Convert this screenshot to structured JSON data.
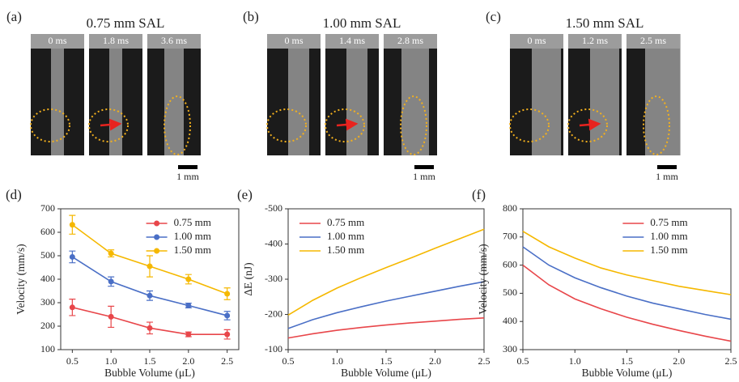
{
  "panels": [
    {
      "label": "(a)",
      "title": "0.75 mm SAL",
      "frames": [
        "0 ms",
        "1.8 ms",
        "3.6 ms"
      ],
      "scale": "1 mm"
    },
    {
      "label": "(b)",
      "title": "1.00 mm SAL",
      "frames": [
        "0 ms",
        "1.4 ms",
        "2.8 ms"
      ],
      "scale": "1 mm"
    },
    {
      "label": "(c)",
      "title": "1.50 mm SAL",
      "frames": [
        "0 ms",
        "1.2 ms",
        "2.5 ms"
      ],
      "scale": "1 mm"
    }
  ],
  "chart_data": [
    {
      "type": "line",
      "label": "(d)",
      "markers": true,
      "legend": "upper right",
      "xlabel": "Bubble Volume (μL)",
      "ylabel": "Velocity (mm/s)",
      "x": [
        0.5,
        1,
        1.5,
        2,
        2.5
      ],
      "xlim": [
        0.35,
        2.65
      ],
      "xticks": [
        0.5,
        {
          "value": 1,
          "label": "1.0"
        },
        1.5,
        {
          "value": 2,
          "label": "2.0"
        },
        2.5
      ],
      "ylim": [
        100,
        700
      ],
      "yticks": [
        100,
        200,
        300,
        400,
        500,
        600,
        700
      ],
      "series": [
        {
          "name": "0.75 mm",
          "color": "#e8464a",
          "values": [
            280,
            240,
            192,
            165,
            165
          ],
          "errors": [
            35,
            45,
            25,
            10,
            20
          ]
        },
        {
          "name": "1.00 mm",
          "color": "#4a6fc6",
          "values": [
            495,
            390,
            330,
            288,
            245
          ],
          "errors": [
            25,
            20,
            20,
            10,
            18
          ]
        },
        {
          "name": "1.50 mm",
          "color": "#f5b800",
          "values": [
            632,
            510,
            455,
            400,
            338
          ],
          "errors": [
            40,
            15,
            45,
            20,
            25
          ]
        }
      ]
    },
    {
      "type": "line",
      "label": "(e)",
      "legend": "upper left",
      "xlabel": "Bubble Volume (μL)",
      "ylabel": "ΔE (nJ)",
      "x": [
        0.5,
        0.75,
        1,
        1.25,
        1.5,
        1.75,
        2,
        2.25,
        2.5
      ],
      "xlim": [
        0.5,
        2.5
      ],
      "xticks": [
        0.5,
        {
          "value": 1,
          "label": "1.0"
        },
        1.5,
        {
          "value": 2,
          "label": "2.0"
        },
        2.5
      ],
      "ylim": [
        -100,
        -500
      ],
      "yticks": [
        -500,
        -400,
        -300,
        -200,
        -100
      ],
      "series": [
        {
          "name": "0.75 mm",
          "color": "#e8464a",
          "values": [
            -133,
            -145,
            -155,
            -163,
            -170,
            -176,
            -181,
            -186,
            -190
          ]
        },
        {
          "name": "1.00 mm",
          "color": "#4a6fc6",
          "values": [
            -160,
            -185,
            -205,
            -222,
            -238,
            -252,
            -266,
            -280,
            -293
          ]
        },
        {
          "name": "1.50 mm",
          "color": "#f5b800",
          "values": [
            -198,
            -240,
            -275,
            -305,
            -333,
            -360,
            -388,
            -415,
            -442
          ]
        }
      ]
    },
    {
      "type": "line",
      "label": "(f)",
      "legend": "upper right",
      "xlabel": "Bubble Volume (μL)",
      "ylabel": "Velocity (mm/s)",
      "x": [
        0.5,
        0.75,
        1,
        1.25,
        1.5,
        1.75,
        2,
        2.25,
        2.5
      ],
      "xlim": [
        0.5,
        2.5
      ],
      "xticks": [
        0.5,
        {
          "value": 1,
          "label": "1.0"
        },
        1.5,
        {
          "value": 2,
          "label": "2.0"
        },
        2.5
      ],
      "ylim": [
        300,
        800
      ],
      "yticks": [
        300,
        400,
        500,
        600,
        700,
        800
      ],
      "series": [
        {
          "name": "0.75 mm",
          "color": "#e8464a",
          "values": [
            600,
            530,
            480,
            445,
            415,
            390,
            368,
            348,
            330
          ]
        },
        {
          "name": "1.00 mm",
          "color": "#4a6fc6",
          "values": [
            665,
            600,
            555,
            520,
            490,
            465,
            445,
            425,
            408
          ]
        },
        {
          "name": "1.50 mm",
          "color": "#f5b800",
          "values": [
            720,
            665,
            625,
            590,
            565,
            545,
            525,
            510,
            495
          ]
        }
      ]
    }
  ]
}
